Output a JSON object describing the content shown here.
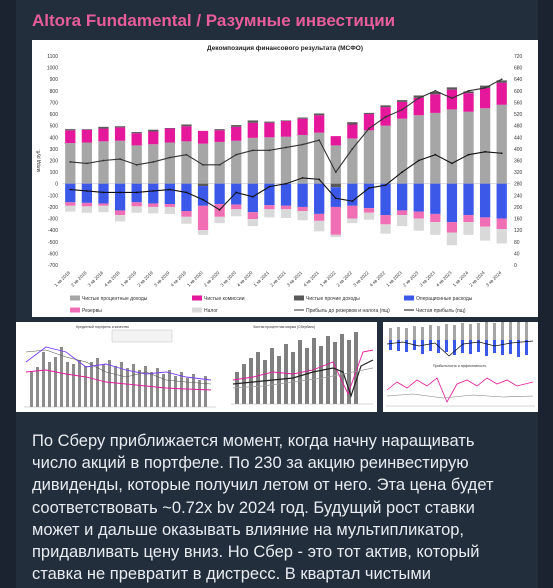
{
  "post": {
    "channel_name": "Altora Fundamental / Разумные инвестиции",
    "text_lines": [
      "По Сберу приближается момент, когда начну наращивать",
      "число акций в портфеле. По 230 за акцию реинвестирую",
      "дивиденды, которые получил летом от него. Эта цена будет",
      "соответствовать ~0.72x bv 2024 год. Будущий рост ставки",
      "может и дальше оказывать влияние на мультипликатор,",
      "придавливать цену вниз. Но Сбер - это тот актив, который",
      "ставка не превратит в дистресс. В квартал чистыми"
    ]
  },
  "colors": {
    "channel": "#e75c9a",
    "bubble": "#222e3c",
    "text": "#e8ecf1"
  },
  "chart_data": [
    {
      "type": "bar",
      "title": "Декомпозиция финансового результата (МСФО)",
      "ylabel": "млрд руб.",
      "ylim": [
        -700,
        1100
      ],
      "y2lim": [
        0,
        720
      ],
      "y_ticks": [
        "1100",
        "1000",
        "900",
        "800",
        "700",
        "600",
        "500",
        "400",
        "300",
        "200",
        "100",
        "0",
        "-100",
        "-200",
        "-300",
        "-400",
        "-500",
        "-600",
        "-700"
      ],
      "y2_ticks": [
        "720",
        "680",
        "640",
        "600",
        "560",
        "520",
        "480",
        "440",
        "400",
        "360",
        "320",
        "280",
        "240",
        "200",
        "160",
        "120",
        "80",
        "40",
        "0"
      ],
      "categories": [
        "1 кв 2018",
        "2 кв 2018",
        "3 кв 2018",
        "4 кв 2018",
        "1 кв 2019",
        "2 кв 2019",
        "3 кв 2019",
        "4 кв 2019",
        "1 кв 2020",
        "2 кв 2020",
        "3 кв 2020",
        "4 кв 2020",
        "1 кв 2021",
        "2 кв 2021",
        "3 кв 2021",
        "4 кв 2021",
        "1 кв 2022",
        "2 кв 2022",
        "3 кв 2022",
        "4 кв 2022",
        "1 кв 2023",
        "2 кв 2023",
        "3 кв 2023",
        "4 кв 2023",
        "1 кв 2024",
        "2 кв 2024",
        "3 кв 2024"
      ],
      "legend_position": "bottom",
      "series": [
        {
          "name": "Чистые процентные доходы",
          "color": "#a6a6a6",
          "values": [
            350,
            355,
            365,
            370,
            330,
            340,
            355,
            365,
            345,
            360,
            370,
            395,
            400,
            405,
            420,
            440,
            330,
            390,
            460,
            500,
            560,
            590,
            610,
            640,
            620,
            650,
            680
          ]
        },
        {
          "name": "Чистые комиссии",
          "color": "#e5179b",
          "values": [
            110,
            110,
            110,
            115,
            105,
            110,
            120,
            130,
            110,
            100,
            120,
            130,
            125,
            135,
            140,
            150,
            80,
            120,
            140,
            160,
            145,
            150,
            160,
            170,
            160,
            175,
            190
          ]
        },
        {
          "name": "Чистые прочие доходы",
          "color": "#595959",
          "values": [
            10,
            5,
            15,
            10,
            10,
            15,
            5,
            15,
            -20,
            10,
            15,
            20,
            10,
            5,
            10,
            15,
            -30,
            20,
            10,
            15,
            15,
            20,
            20,
            20,
            15,
            20,
            20
          ]
        },
        {
          "name": "Операционные расходы",
          "color": "#3b58e8",
          "values": [
            -160,
            -165,
            -170,
            -230,
            -160,
            -170,
            -175,
            -235,
            -170,
            -175,
            -180,
            -245,
            -185,
            -190,
            -200,
            -260,
            -170,
            -190,
            -210,
            -270,
            -230,
            -240,
            -260,
            -330,
            -270,
            -290,
            -300
          ]
        },
        {
          "name": "Резервы",
          "color": "#f06fb4",
          "values": [
            -30,
            -30,
            -20,
            -40,
            -35,
            -30,
            -25,
            -50,
            -210,
            -110,
            -40,
            -60,
            -35,
            -30,
            -35,
            -60,
            -240,
            -110,
            -40,
            -80,
            -40,
            -60,
            -70,
            -90,
            -60,
            -80,
            -90
          ]
        },
        {
          "name": "Налог",
          "color": "#d9d9d9",
          "values": [
            -50,
            -55,
            -55,
            -55,
            -55,
            -55,
            -60,
            -60,
            -40,
            -55,
            -60,
            -60,
            -70,
            -75,
            -80,
            -90,
            -20,
            -40,
            -60,
            -80,
            -95,
            -105,
            -110,
            -110,
            -110,
            -120,
            -125
          ]
        }
      ],
      "lines": [
        {
          "name": "Прибыль до резервов и налога (пщ)",
          "color": "#333333",
          "values": [
            355,
            350,
            360,
            365,
            345,
            355,
            370,
            380,
            345,
            345,
            380,
            395,
            395,
            405,
            415,
            430,
            320,
            400,
            470,
            510,
            535,
            575,
            600,
            575,
            600,
            610,
            640
          ]
        },
        {
          "name": "Чистая прибыль (пщ)",
          "color": "#111111",
          "values": [
            260,
            255,
            250,
            250,
            250,
            255,
            260,
            250,
            225,
            190,
            250,
            235,
            270,
            280,
            300,
            295,
            230,
            220,
            265,
            275,
            320,
            360,
            380,
            350,
            380,
            390,
            385
          ]
        }
      ]
    }
  ]
}
